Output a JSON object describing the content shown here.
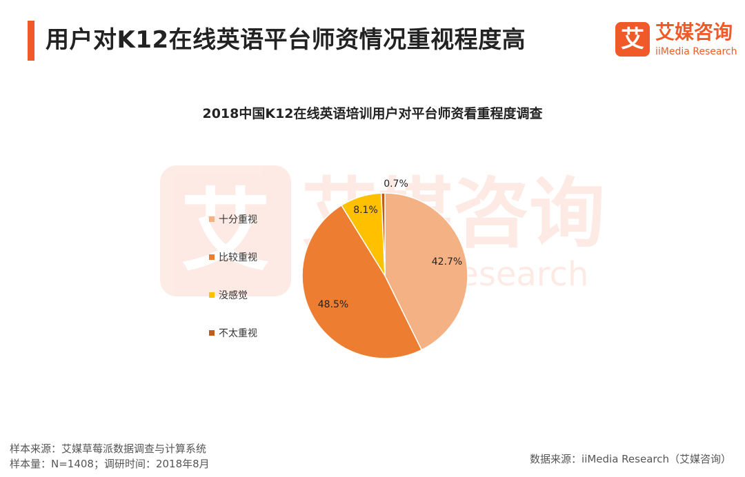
{
  "header": {
    "title": "用户对K12在线英语平台师资情况重视程度高"
  },
  "logo": {
    "mark": "艾",
    "cn": "艾媒咨询",
    "en": "iiMedia Research"
  },
  "chart_data": {
    "type": "pie",
    "title": "2018中国K12在线英语培训用户对平台师资看重程度调查",
    "legend_position": "left",
    "categories": [
      "十分重视",
      "比较重视",
      "没感觉",
      "不太重视"
    ],
    "values": [
      42.7,
      48.5,
      8.1,
      0.7
    ],
    "labels": [
      "42.7%",
      "48.5%",
      "8.1%",
      "0.7%"
    ],
    "colors": [
      "#f4b183",
      "#ed7d31",
      "#ffc000",
      "#c55a11"
    ]
  },
  "footer": {
    "source_sample": "样本来源：艾媒草莓派数据调查与计算系统",
    "sample_info": "样本量：N=1408；调研时间：2018年8月",
    "data_source": "数据来源：iiMedia Research（艾媒咨询）"
  }
}
